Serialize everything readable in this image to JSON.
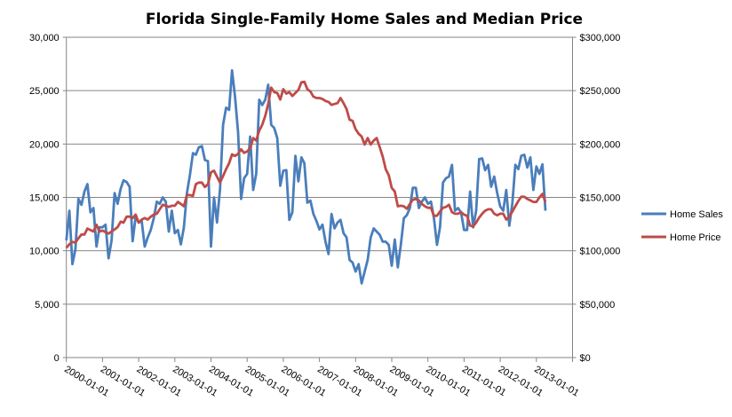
{
  "chart_data": {
    "type": "line",
    "title": "Florida Single-Family Home Sales and Median Price",
    "xlabel": "",
    "ylabel": "",
    "x_start": "2000-01",
    "x_frequency": "monthly",
    "x_tick_labels": [
      "2000-01-01",
      "2001-01-01",
      "2002-01-01",
      "2003-01-01",
      "2004-01-01",
      "2005-01-01",
      "2006-01-01",
      "2007-01-01",
      "2008-01-01",
      "2009-01-01",
      "2010-01-01",
      "2011-01-01",
      "2012-01-01",
      "2013-01-01"
    ],
    "y_left": {
      "ylim": [
        0,
        30000
      ],
      "tick_labels": [
        "0",
        "5,000",
        "10,000",
        "15,000",
        "20,000",
        "25,000",
        "30,000"
      ]
    },
    "y_right": {
      "ylim": [
        0,
        300000
      ],
      "tick_labels": [
        "$0",
        "$50,000",
        "$100,000",
        "$150,000",
        "$200,000",
        "$250,000",
        "$300,000"
      ]
    },
    "grid": true,
    "legend_position": "right",
    "series": [
      {
        "name": "Home Sales",
        "axis": "left",
        "color": "#4a7ebb",
        "values": [
          10970,
          13750,
          8750,
          10140,
          14860,
          14300,
          15560,
          16250,
          13600,
          14000,
          10400,
          12200,
          12200,
          12450,
          9300,
          10970,
          15400,
          14400,
          15800,
          16600,
          16450,
          16000,
          10900,
          13200,
          12650,
          12800,
          10400,
          11250,
          11950,
          13050,
          14600,
          14400,
          15000,
          14600,
          11800,
          13750,
          11650,
          11950,
          10600,
          12200,
          15400,
          17100,
          19150,
          19000,
          19700,
          19800,
          18500,
          18400,
          10400,
          15000,
          12650,
          15800,
          21800,
          23400,
          23200,
          26900,
          24400,
          21100,
          14860,
          16800,
          17200,
          20700,
          15700,
          17200,
          24150,
          23650,
          24150,
          25550,
          21800,
          21500,
          20550,
          16100,
          17500,
          17550,
          12900,
          13600,
          18900,
          16500,
          18750,
          18200,
          14500,
          14700,
          13450,
          12800,
          12000,
          12450,
          10850,
          9700,
          13450,
          12100,
          12650,
          12900,
          11650,
          11250,
          9150,
          8900,
          8050,
          8750,
          6950,
          8050,
          9150,
          11250,
          12100,
          11800,
          11500,
          10850,
          10850,
          10550,
          8600,
          11050,
          8450,
          10550,
          13050,
          13350,
          14000,
          15900,
          15900,
          14000,
          14600,
          15000,
          14400,
          14600,
          13050,
          10550,
          12200,
          16400,
          16800,
          16950,
          18050,
          13750,
          14000,
          13600,
          11950,
          11950,
          15550,
          12200,
          13750,
          18600,
          18650,
          17550,
          18050,
          16000,
          16950,
          15400,
          14150,
          13750,
          15700,
          12350,
          14400,
          18050,
          17650,
          18900,
          19000,
          17800,
          18750,
          15700,
          17900,
          17200,
          18100,
          13750
        ]
      },
      {
        "name": "Home Price",
        "axis": "right",
        "color": "#be4b48",
        "values": [
          102800,
          106100,
          108300,
          107800,
          111700,
          115300,
          115300,
          120800,
          119400,
          118100,
          124400,
          118100,
          118900,
          117500,
          116100,
          118100,
          120000,
          122200,
          127200,
          126400,
          132000,
          132000,
          130600,
          133900,
          126400,
          129200,
          130600,
          129200,
          132000,
          133900,
          134700,
          138900,
          143100,
          142200,
          141100,
          142200,
          142200,
          145800,
          143900,
          141700,
          152200,
          152200,
          151400,
          162500,
          163900,
          163900,
          159700,
          162500,
          173600,
          175000,
          169400,
          163900,
          170000,
          176400,
          182000,
          190300,
          188900,
          190800,
          195000,
          191700,
          193100,
          195800,
          205600,
          203300,
          212500,
          218100,
          226400,
          237500,
          252800,
          248600,
          247800,
          241700,
          251400,
          247200,
          248600,
          245000,
          247800,
          250600,
          257800,
          258300,
          251400,
          249200,
          244400,
          243100,
          243100,
          242200,
          240300,
          239400,
          236700,
          237500,
          238300,
          243100,
          238300,
          232800,
          222800,
          221700,
          213900,
          209700,
          207000,
          199500,
          205600,
          199500,
          203300,
          205600,
          197200,
          188300,
          176400,
          170800,
          158900,
          155600,
          141700,
          142200,
          141700,
          139400,
          143900,
          147800,
          148600,
          147200,
          143900,
          141700,
          140300,
          140300,
          132800,
          132800,
          136700,
          140300,
          141100,
          143100,
          136100,
          134700,
          134700,
          136100,
          133900,
          132800,
          123600,
          122800,
          126400,
          131100,
          134700,
          137500,
          138900,
          138900,
          134700,
          133300,
          134700,
          134700,
          129200,
          131900,
          136700,
          141700,
          146700,
          150600,
          150600,
          148600,
          147200,
          145800,
          145800,
          150000,
          153300,
          145800
        ]
      }
    ]
  }
}
